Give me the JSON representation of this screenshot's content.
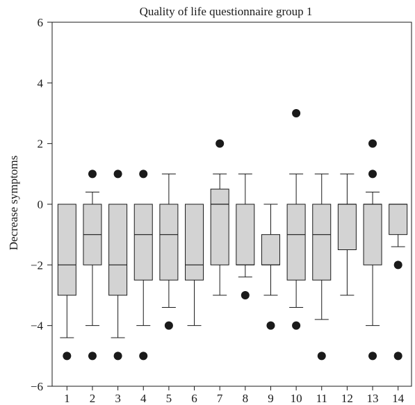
{
  "chart_data": {
    "type": "box",
    "title": "Quality of life questionnaire group 1",
    "xlabel": "",
    "ylabel": "Decrease symptoms",
    "ylim": [
      -6,
      6
    ],
    "yticks": [
      -6,
      -4,
      -2,
      0,
      2,
      4,
      6
    ],
    "ytick_labels": [
      "−6",
      "−4",
      "−2",
      "0",
      "2",
      "4",
      "6"
    ],
    "categories": [
      "1",
      "2",
      "3",
      "4",
      "5",
      "6",
      "7",
      "8",
      "9",
      "10",
      "11",
      "12",
      "13",
      "14"
    ],
    "grid": false,
    "colors": {
      "box_fill": "#d3d3d3",
      "stroke": "#1a1a1a",
      "outlier": "#1a1a1a"
    },
    "boxes": [
      {
        "label": "1",
        "whisker_low": -4.4,
        "q1": -3,
        "median": -2,
        "q3": 0,
        "whisker_high": 0,
        "outliers": [
          -5
        ]
      },
      {
        "label": "2",
        "whisker_low": -4,
        "q1": -2,
        "median": -1,
        "q3": 0,
        "whisker_high": 0.4,
        "outliers": [
          1,
          -5
        ]
      },
      {
        "label": "3",
        "whisker_low": -4.4,
        "q1": -3,
        "median": -2,
        "q3": 0,
        "whisker_high": 0,
        "outliers": [
          1,
          -5
        ]
      },
      {
        "label": "4",
        "whisker_low": -4,
        "q1": -2.5,
        "median": -1,
        "q3": 0,
        "whisker_high": 0,
        "outliers": [
          1,
          -5
        ]
      },
      {
        "label": "5",
        "whisker_low": -3.4,
        "q1": -2.5,
        "median": -1,
        "q3": 0,
        "whisker_high": 1,
        "outliers": [
          -4
        ]
      },
      {
        "label": "6",
        "whisker_low": -4,
        "q1": -2.5,
        "median": -2,
        "q3": 0,
        "whisker_high": 0,
        "outliers": []
      },
      {
        "label": "7",
        "whisker_low": -3,
        "q1": -2,
        "median": 0,
        "q3": 0.5,
        "whisker_high": 1,
        "outliers": [
          2
        ]
      },
      {
        "label": "8",
        "whisker_low": -2.4,
        "q1": -2,
        "median": -2,
        "q3": 0,
        "whisker_high": 1,
        "outliers": [
          -3
        ]
      },
      {
        "label": "9",
        "whisker_low": -3,
        "q1": -2,
        "median": -2,
        "q3": -1,
        "whisker_high": 0,
        "outliers": [
          -4
        ]
      },
      {
        "label": "10",
        "whisker_low": -3.4,
        "q1": -2.5,
        "median": -1,
        "q3": 0,
        "whisker_high": 1,
        "outliers": [
          3,
          -4
        ]
      },
      {
        "label": "11",
        "whisker_low": -3.8,
        "q1": -2.5,
        "median": -1,
        "q3": 0,
        "whisker_high": 1,
        "outliers": [
          -5
        ]
      },
      {
        "label": "12",
        "whisker_low": -3,
        "q1": -1.5,
        "median": 0,
        "q3": 0,
        "whisker_high": 1,
        "outliers": []
      },
      {
        "label": "13",
        "whisker_low": -4,
        "q1": -2,
        "median": 0,
        "q3": 0,
        "whisker_high": 0.4,
        "outliers": [
          2,
          1,
          -5
        ]
      },
      {
        "label": "14",
        "whisker_low": -1.4,
        "q1": -1,
        "median": 0,
        "q3": 0,
        "whisker_high": 0,
        "outliers": [
          -2,
          -5
        ]
      }
    ]
  }
}
